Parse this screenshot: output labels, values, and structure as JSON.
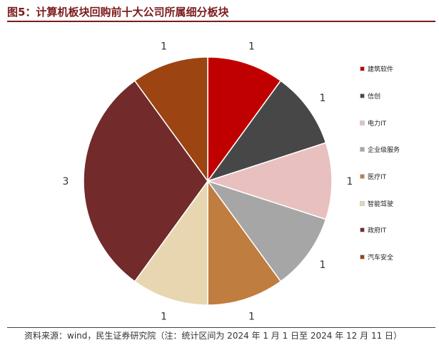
{
  "header": {
    "title": "图5：计算机板块回购前十大公司所属细分板块"
  },
  "footer": {
    "source": "资料来源：wind，民生证券研究院（注：统计区间为 2024 年 1 月 1 日至 2024 年 12 月 11 日）"
  },
  "chart_data": {
    "type": "pie",
    "title": "图5：计算机板块回购前十大公司所属细分板块",
    "categories": [
      "建筑软件",
      "信创",
      "电力IT",
      "企业级服务",
      "医疗IT",
      "智能驾驶",
      "政府IT",
      "汽车安全"
    ],
    "values": [
      1,
      1,
      1,
      1,
      1,
      1,
      3,
      1
    ],
    "colors": [
      "#c00000",
      "#474747",
      "#e8c0c0",
      "#a6a6a6",
      "#c07d40",
      "#e8d6b0",
      "#722a2a",
      "#9c4412"
    ],
    "data_labels": [
      "1",
      "1",
      "1",
      "1",
      "1",
      "1",
      "3",
      "1"
    ],
    "legend_position": "right",
    "start_angle_deg": 0,
    "direction": "clockwise"
  }
}
